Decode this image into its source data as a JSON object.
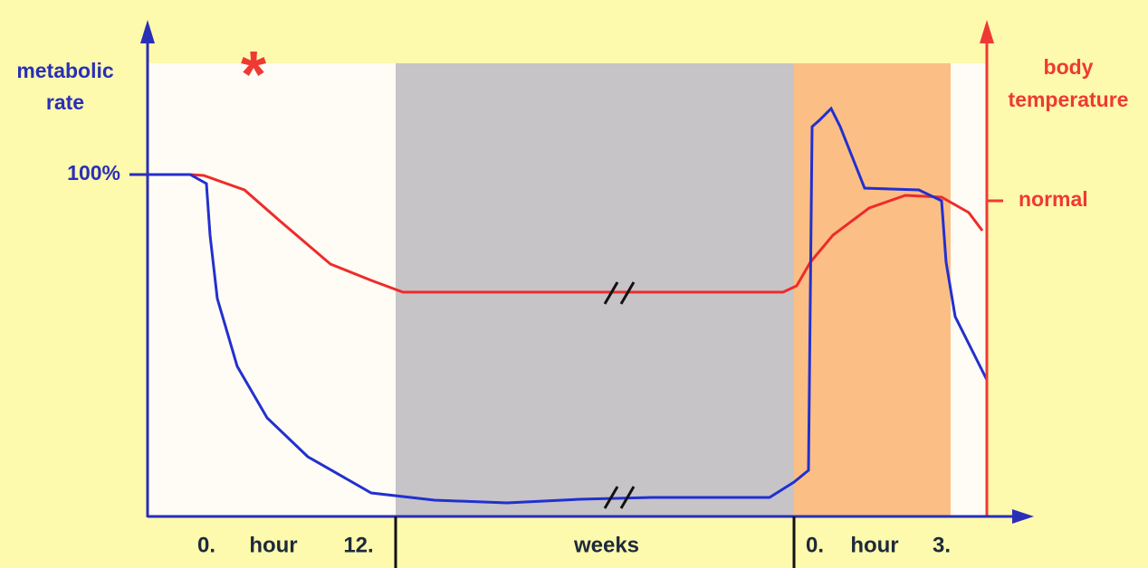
{
  "left_axis": {
    "label_lines": [
      "metabolic",
      "rate"
    ],
    "tick": "100%"
  },
  "right_axis": {
    "label_lines": [
      "body",
      "temperature"
    ],
    "tick": "normal"
  },
  "marker": "*",
  "x_axis": {
    "segments": [
      {
        "start": "0.",
        "unit": "hour",
        "end": "12."
      },
      {
        "unit": "weeks"
      },
      {
        "start": "0.",
        "unit": "hour",
        "end": "3."
      }
    ]
  }
}
